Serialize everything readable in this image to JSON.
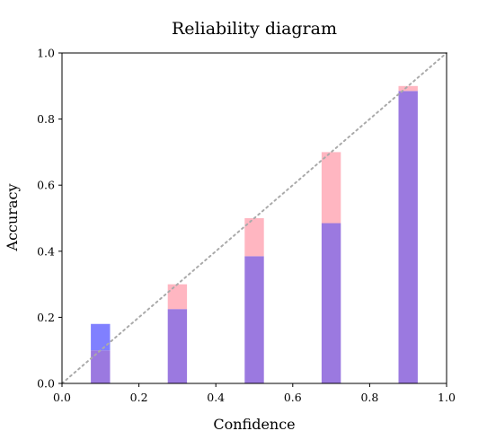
{
  "chart_data": {
    "type": "bar",
    "title": "Reliability diagram",
    "xlabel": "Confidence",
    "ylabel": "Accuracy",
    "xlim": [
      0.0,
      1.0
    ],
    "ylim": [
      0.0,
      1.0
    ],
    "xticks": [
      "0.0",
      "0.2",
      "0.4",
      "0.6",
      "0.8",
      "1.0"
    ],
    "yticks": [
      "0.0",
      "0.2",
      "0.4",
      "0.6",
      "0.8",
      "1.0"
    ],
    "grid": false,
    "bin_centers": [
      0.1,
      0.3,
      0.5,
      0.7,
      0.9
    ],
    "bin_width": 0.05,
    "series": [
      {
        "name": "",
        "role": "confidence",
        "color": "#ffb6c1",
        "values": [
          0.1,
          0.3,
          0.5,
          0.7,
          0.9
        ]
      },
      {
        "name": "",
        "role": "accuracy",
        "color": "#8080ff",
        "values": [
          0.18,
          0.225,
          0.385,
          0.485,
          0.885
        ]
      }
    ],
    "overlap_color": "#9b79e0",
    "diagonal": {
      "from": [
        0,
        0
      ],
      "to": [
        1,
        1
      ],
      "style": "dotted",
      "color": "#aaaaaa"
    }
  }
}
